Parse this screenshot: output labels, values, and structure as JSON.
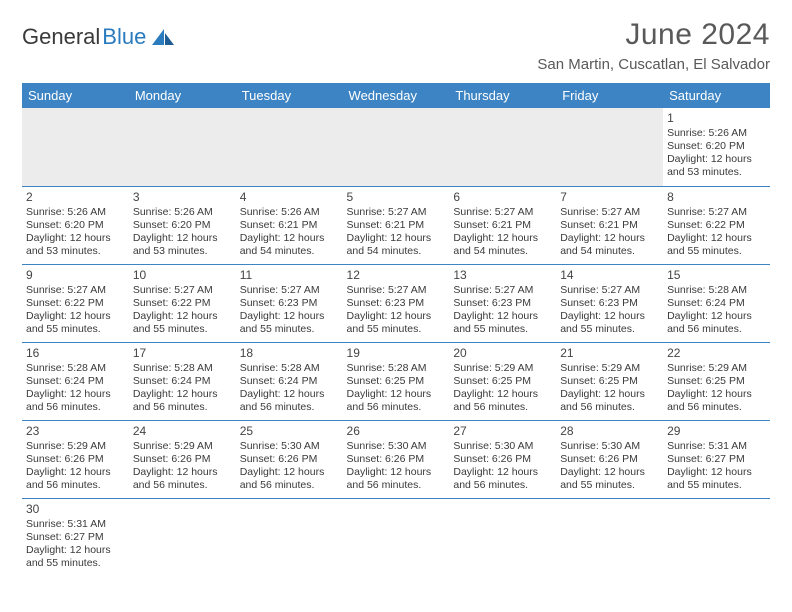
{
  "brand": {
    "part1": "General",
    "part2": "Blue",
    "color1": "#3a3a3a",
    "color2": "#2b7bbf"
  },
  "title": "June 2024",
  "location": "San Martin, Cuscatlan, El Salvador",
  "header_bg": "#3d84c4",
  "header_fg": "#ffffff",
  "border_color": "#3d84c4",
  "empty_row_bg": "#ececec",
  "text_color": "#3a3a3a",
  "title_color": "#595959",
  "dayHeaders": [
    "Sunday",
    "Monday",
    "Tuesday",
    "Wednesday",
    "Thursday",
    "Friday",
    "Saturday"
  ],
  "weeks": [
    [
      null,
      null,
      null,
      null,
      null,
      null,
      {
        "n": "1",
        "sr": "5:26 AM",
        "ss": "6:20 PM",
        "dl": "12 hours and 53 minutes."
      }
    ],
    [
      {
        "n": "2",
        "sr": "5:26 AM",
        "ss": "6:20 PM",
        "dl": "12 hours and 53 minutes."
      },
      {
        "n": "3",
        "sr": "5:26 AM",
        "ss": "6:20 PM",
        "dl": "12 hours and 53 minutes."
      },
      {
        "n": "4",
        "sr": "5:26 AM",
        "ss": "6:21 PM",
        "dl": "12 hours and 54 minutes."
      },
      {
        "n": "5",
        "sr": "5:27 AM",
        "ss": "6:21 PM",
        "dl": "12 hours and 54 minutes."
      },
      {
        "n": "6",
        "sr": "5:27 AM",
        "ss": "6:21 PM",
        "dl": "12 hours and 54 minutes."
      },
      {
        "n": "7",
        "sr": "5:27 AM",
        "ss": "6:21 PM",
        "dl": "12 hours and 54 minutes."
      },
      {
        "n": "8",
        "sr": "5:27 AM",
        "ss": "6:22 PM",
        "dl": "12 hours and 55 minutes."
      }
    ],
    [
      {
        "n": "9",
        "sr": "5:27 AM",
        "ss": "6:22 PM",
        "dl": "12 hours and 55 minutes."
      },
      {
        "n": "10",
        "sr": "5:27 AM",
        "ss": "6:22 PM",
        "dl": "12 hours and 55 minutes."
      },
      {
        "n": "11",
        "sr": "5:27 AM",
        "ss": "6:23 PM",
        "dl": "12 hours and 55 minutes."
      },
      {
        "n": "12",
        "sr": "5:27 AM",
        "ss": "6:23 PM",
        "dl": "12 hours and 55 minutes."
      },
      {
        "n": "13",
        "sr": "5:27 AM",
        "ss": "6:23 PM",
        "dl": "12 hours and 55 minutes."
      },
      {
        "n": "14",
        "sr": "5:27 AM",
        "ss": "6:23 PM",
        "dl": "12 hours and 55 minutes."
      },
      {
        "n": "15",
        "sr": "5:28 AM",
        "ss": "6:24 PM",
        "dl": "12 hours and 56 minutes."
      }
    ],
    [
      {
        "n": "16",
        "sr": "5:28 AM",
        "ss": "6:24 PM",
        "dl": "12 hours and 56 minutes."
      },
      {
        "n": "17",
        "sr": "5:28 AM",
        "ss": "6:24 PM",
        "dl": "12 hours and 56 minutes."
      },
      {
        "n": "18",
        "sr": "5:28 AM",
        "ss": "6:24 PM",
        "dl": "12 hours and 56 minutes."
      },
      {
        "n": "19",
        "sr": "5:28 AM",
        "ss": "6:25 PM",
        "dl": "12 hours and 56 minutes."
      },
      {
        "n": "20",
        "sr": "5:29 AM",
        "ss": "6:25 PM",
        "dl": "12 hours and 56 minutes."
      },
      {
        "n": "21",
        "sr": "5:29 AM",
        "ss": "6:25 PM",
        "dl": "12 hours and 56 minutes."
      },
      {
        "n": "22",
        "sr": "5:29 AM",
        "ss": "6:25 PM",
        "dl": "12 hours and 56 minutes."
      }
    ],
    [
      {
        "n": "23",
        "sr": "5:29 AM",
        "ss": "6:26 PM",
        "dl": "12 hours and 56 minutes."
      },
      {
        "n": "24",
        "sr": "5:29 AM",
        "ss": "6:26 PM",
        "dl": "12 hours and 56 minutes."
      },
      {
        "n": "25",
        "sr": "5:30 AM",
        "ss": "6:26 PM",
        "dl": "12 hours and 56 minutes."
      },
      {
        "n": "26",
        "sr": "5:30 AM",
        "ss": "6:26 PM",
        "dl": "12 hours and 56 minutes."
      },
      {
        "n": "27",
        "sr": "5:30 AM",
        "ss": "6:26 PM",
        "dl": "12 hours and 56 minutes."
      },
      {
        "n": "28",
        "sr": "5:30 AM",
        "ss": "6:26 PM",
        "dl": "12 hours and 55 minutes."
      },
      {
        "n": "29",
        "sr": "5:31 AM",
        "ss": "6:27 PM",
        "dl": "12 hours and 55 minutes."
      }
    ],
    [
      {
        "n": "30",
        "sr": "5:31 AM",
        "ss": "6:27 PM",
        "dl": "12 hours and 55 minutes."
      },
      null,
      null,
      null,
      null,
      null,
      null
    ]
  ],
  "labels": {
    "sunrise": "Sunrise: ",
    "sunset": "Sunset: ",
    "daylight": "Daylight: "
  }
}
